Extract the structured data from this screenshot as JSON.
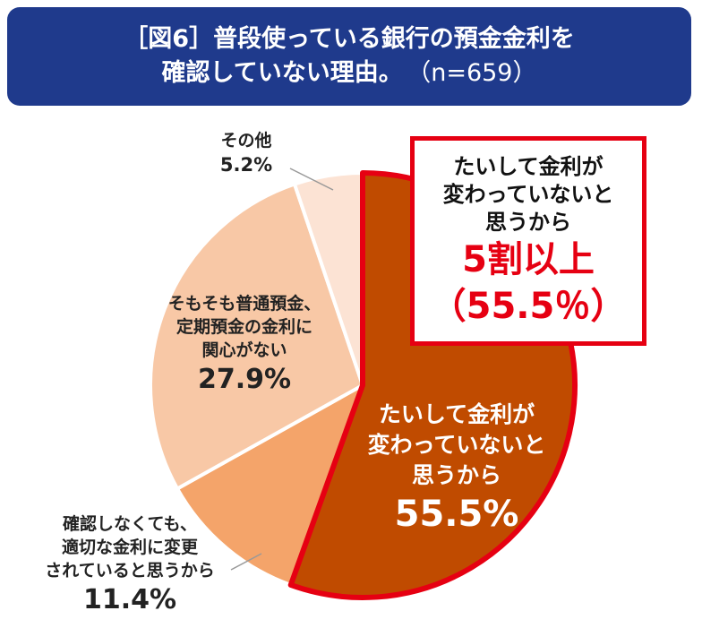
{
  "title": {
    "line1": "［図6］普段使っている銀行の預金金利を",
    "line2": "確認していない理由。",
    "n": "（n=659）"
  },
  "chart_data": {
    "type": "pie",
    "slices": [
      {
        "label_lines": [
          "たいして金利が",
          "変わっていないと",
          "思うから"
        ],
        "value": 55.5,
        "value_text": "55.5%",
        "color": "#c04b00"
      },
      {
        "label_lines": [
          "確認しなくても、",
          "適切な金利に変更",
          "されていると思うから"
        ],
        "value": 11.4,
        "value_text": "11.4%",
        "color": "#f4a46a"
      },
      {
        "label_lines": [
          "そもそも普通預金、",
          "定期預金の金利に",
          "関心がない"
        ],
        "value": 27.9,
        "value_text": "27.9%",
        "color": "#f8c8a6"
      },
      {
        "label_lines": [
          "その他"
        ],
        "value": 5.2,
        "value_text": "5.2%",
        "color": "#fce3d4"
      }
    ],
    "highlight_color": "#e60012"
  },
  "callout": {
    "lines": [
      "たいして金利が",
      "変わっていないと",
      "思うから"
    ],
    "headline": "5割以上",
    "value": "（55.5％）"
  }
}
